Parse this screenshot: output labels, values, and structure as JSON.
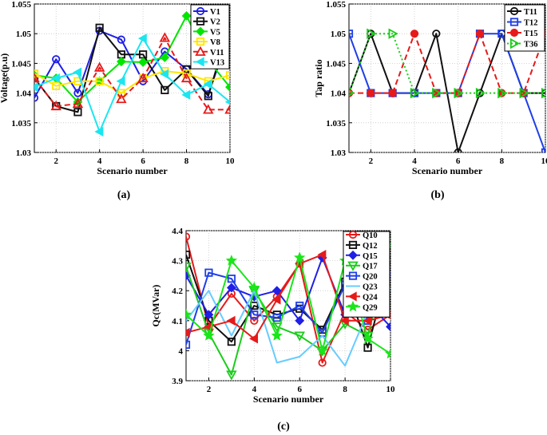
{
  "chart_data": [
    {
      "panel_label": "(a)",
      "type": "line",
      "xlabel": "Scenario number",
      "ylabel": "Voltage(p.u)",
      "xlim": [
        1,
        10
      ],
      "ylim": [
        1.03,
        1.055
      ],
      "xticks": [
        2,
        4,
        6,
        8,
        10
      ],
      "yticks": [
        "1.03",
        "1.035",
        "1.04",
        "1.045",
        "1.05",
        "1.055"
      ],
      "legend_position": "top-right",
      "x": [
        1,
        2,
        3,
        4,
        5,
        6,
        7,
        8,
        9,
        10
      ],
      "series": [
        {
          "name": "V1",
          "color": "#1f1fe6",
          "dash": "solid",
          "marker": "circle",
          "values": [
            1.0392,
            1.0457,
            1.04,
            1.0505,
            1.049,
            1.042,
            1.047,
            1.044,
            1.0398,
            1.0501
          ]
        },
        {
          "name": "V2",
          "color": "#111111",
          "dash": "solid",
          "marker": "square",
          "values": [
            1.0425,
            1.0378,
            1.0368,
            1.051,
            1.0465,
            1.0465,
            1.0405,
            1.044,
            1.0395,
            1.0518
          ]
        },
        {
          "name": "V5",
          "color": "#00e600",
          "dash": "solid",
          "marker": "diamond",
          "values": [
            1.043,
            1.0425,
            1.0385,
            1.042,
            1.0453,
            1.0452,
            1.046,
            1.053,
            1.0455,
            1.041
          ]
        },
        {
          "name": "V8",
          "color": "#ffe600",
          "dash": "solid",
          "marker": "square",
          "values": [
            1.0433,
            1.0412,
            1.042,
            1.042,
            1.04,
            1.0425,
            1.0437,
            1.0433,
            1.042,
            1.043
          ]
        },
        {
          "name": "V11",
          "color": "#e61a1a",
          "dash": "dashed",
          "marker": "triangle",
          "values": [
            1.0425,
            1.0378,
            1.0382,
            1.0443,
            1.039,
            1.0425,
            1.0493,
            1.0425,
            1.0372,
            1.0372
          ]
        },
        {
          "name": "V13",
          "color": "#1ae6f0",
          "dash": "solid",
          "marker": "triangle-left",
          "values": [
            1.041,
            1.0425,
            1.0435,
            1.0335,
            1.042,
            1.0492,
            1.0432,
            1.0397,
            1.0415,
            1.0385
          ]
        }
      ]
    },
    {
      "panel_label": "(b)",
      "type": "line",
      "xlabel": "Scenario number",
      "ylabel": "Tap ratio",
      "xlim": [
        1,
        10
      ],
      "ylim": [
        1.03,
        1.055
      ],
      "xticks": [
        2,
        4,
        6,
        8,
        10
      ],
      "yticks": [
        "1.03",
        "1.035",
        "1.04",
        "1.045",
        "1.05",
        "1.055"
      ],
      "legend_position": "top-right",
      "x": [
        1,
        2,
        3,
        4,
        5,
        6,
        7,
        8,
        9,
        10
      ],
      "series": [
        {
          "name": "T11",
          "color": "#111111",
          "dash": "solid",
          "marker": "circle",
          "values": [
            1.04,
            1.05,
            1.04,
            1.04,
            1.05,
            1.03,
            1.04,
            1.05,
            1.04,
            1.04
          ]
        },
        {
          "name": "T12",
          "color": "#1f3fe6",
          "dash": "solid",
          "marker": "square",
          "values": [
            1.05,
            1.04,
            1.04,
            1.04,
            1.04,
            1.04,
            1.05,
            1.05,
            1.04,
            1.03
          ]
        },
        {
          "name": "T15",
          "color": "#e61a1a",
          "dash": "dashed",
          "marker": "circle-filled",
          "values": [
            1.04,
            1.04,
            1.04,
            1.05,
            1.04,
            1.04,
            1.05,
            1.04,
            1.04,
            1.05
          ]
        },
        {
          "name": "T36",
          "color": "#1acc1a",
          "dash": "dotted",
          "marker": "triangle-right",
          "values": [
            1.04,
            1.05,
            1.05,
            1.04,
            1.04,
            1.04,
            1.04,
            1.04,
            1.04,
            1.04
          ]
        }
      ]
    },
    {
      "panel_label": "(c)",
      "type": "line",
      "xlabel": "Scenario number",
      "ylabel": "Qc(MVar)",
      "xlim": [
        1,
        10
      ],
      "ylim": [
        3.9,
        4.4
      ],
      "xticks": [
        2,
        4,
        6,
        8,
        10
      ],
      "yticks": [
        "3.9",
        "4",
        "4.1",
        "4.2",
        "4.3",
        "4.4"
      ],
      "legend_position": "top-right",
      "x": [
        1,
        2,
        3,
        4,
        5,
        6,
        7,
        8,
        9,
        10
      ],
      "series": [
        {
          "name": "Q10",
          "color": "#e61a1a",
          "dash": "solid",
          "marker": "circle",
          "values": [
            4.38,
            4.08,
            4.19,
            4.1,
            4.18,
            4.29,
            3.96,
            4.13,
            4.07,
            4.12
          ]
        },
        {
          "name": "Q12",
          "color": "#111111",
          "dash": "solid",
          "marker": "square",
          "values": [
            4.32,
            4.1,
            4.03,
            4.15,
            4.12,
            4.14,
            4.07,
            4.23,
            4.01,
            4.3
          ]
        },
        {
          "name": "Q15",
          "color": "#1f1fe6",
          "dash": "solid",
          "marker": "diamond",
          "values": [
            4.25,
            4.12,
            4.21,
            4.18,
            4.2,
            4.1,
            4.31,
            4.12,
            4.16,
            4.08
          ]
        },
        {
          "name": "Q17",
          "color": "#1acc1a",
          "dash": "solid",
          "marker": "triangle-down",
          "values": [
            4.28,
            4.06,
            3.92,
            4.2,
            4.08,
            4.05,
            4.0,
            4.09,
            4.05,
            4.36
          ]
        },
        {
          "name": "Q20",
          "color": "#1f3fe6",
          "dash": "solid",
          "marker": "square",
          "values": [
            4.02,
            4.26,
            4.24,
            4.12,
            4.11,
            4.15,
            4.06,
            4.22,
            4.1,
            4.26
          ]
        },
        {
          "name": "Q23",
          "color": "#66ccff",
          "dash": "solid",
          "marker": "none",
          "values": [
            4.1,
            4.2,
            4.05,
            4.2,
            3.96,
            3.98,
            4.05,
            3.95,
            4.13,
            4.21
          ]
        },
        {
          "name": "Q24",
          "color": "#e61a1a",
          "dash": "solid",
          "marker": "triangle-left",
          "values": [
            4.06,
            4.08,
            4.1,
            4.04,
            4.17,
            4.29,
            4.32,
            4.1,
            4.1,
            4.12
          ]
        },
        {
          "name": "Q29",
          "color": "#1ae61a",
          "dash": "solid",
          "marker": "star",
          "values": [
            4.12,
            4.05,
            4.3,
            4.21,
            4.05,
            4.31,
            4.0,
            4.3,
            4.04,
            3.99
          ]
        }
      ]
    }
  ]
}
